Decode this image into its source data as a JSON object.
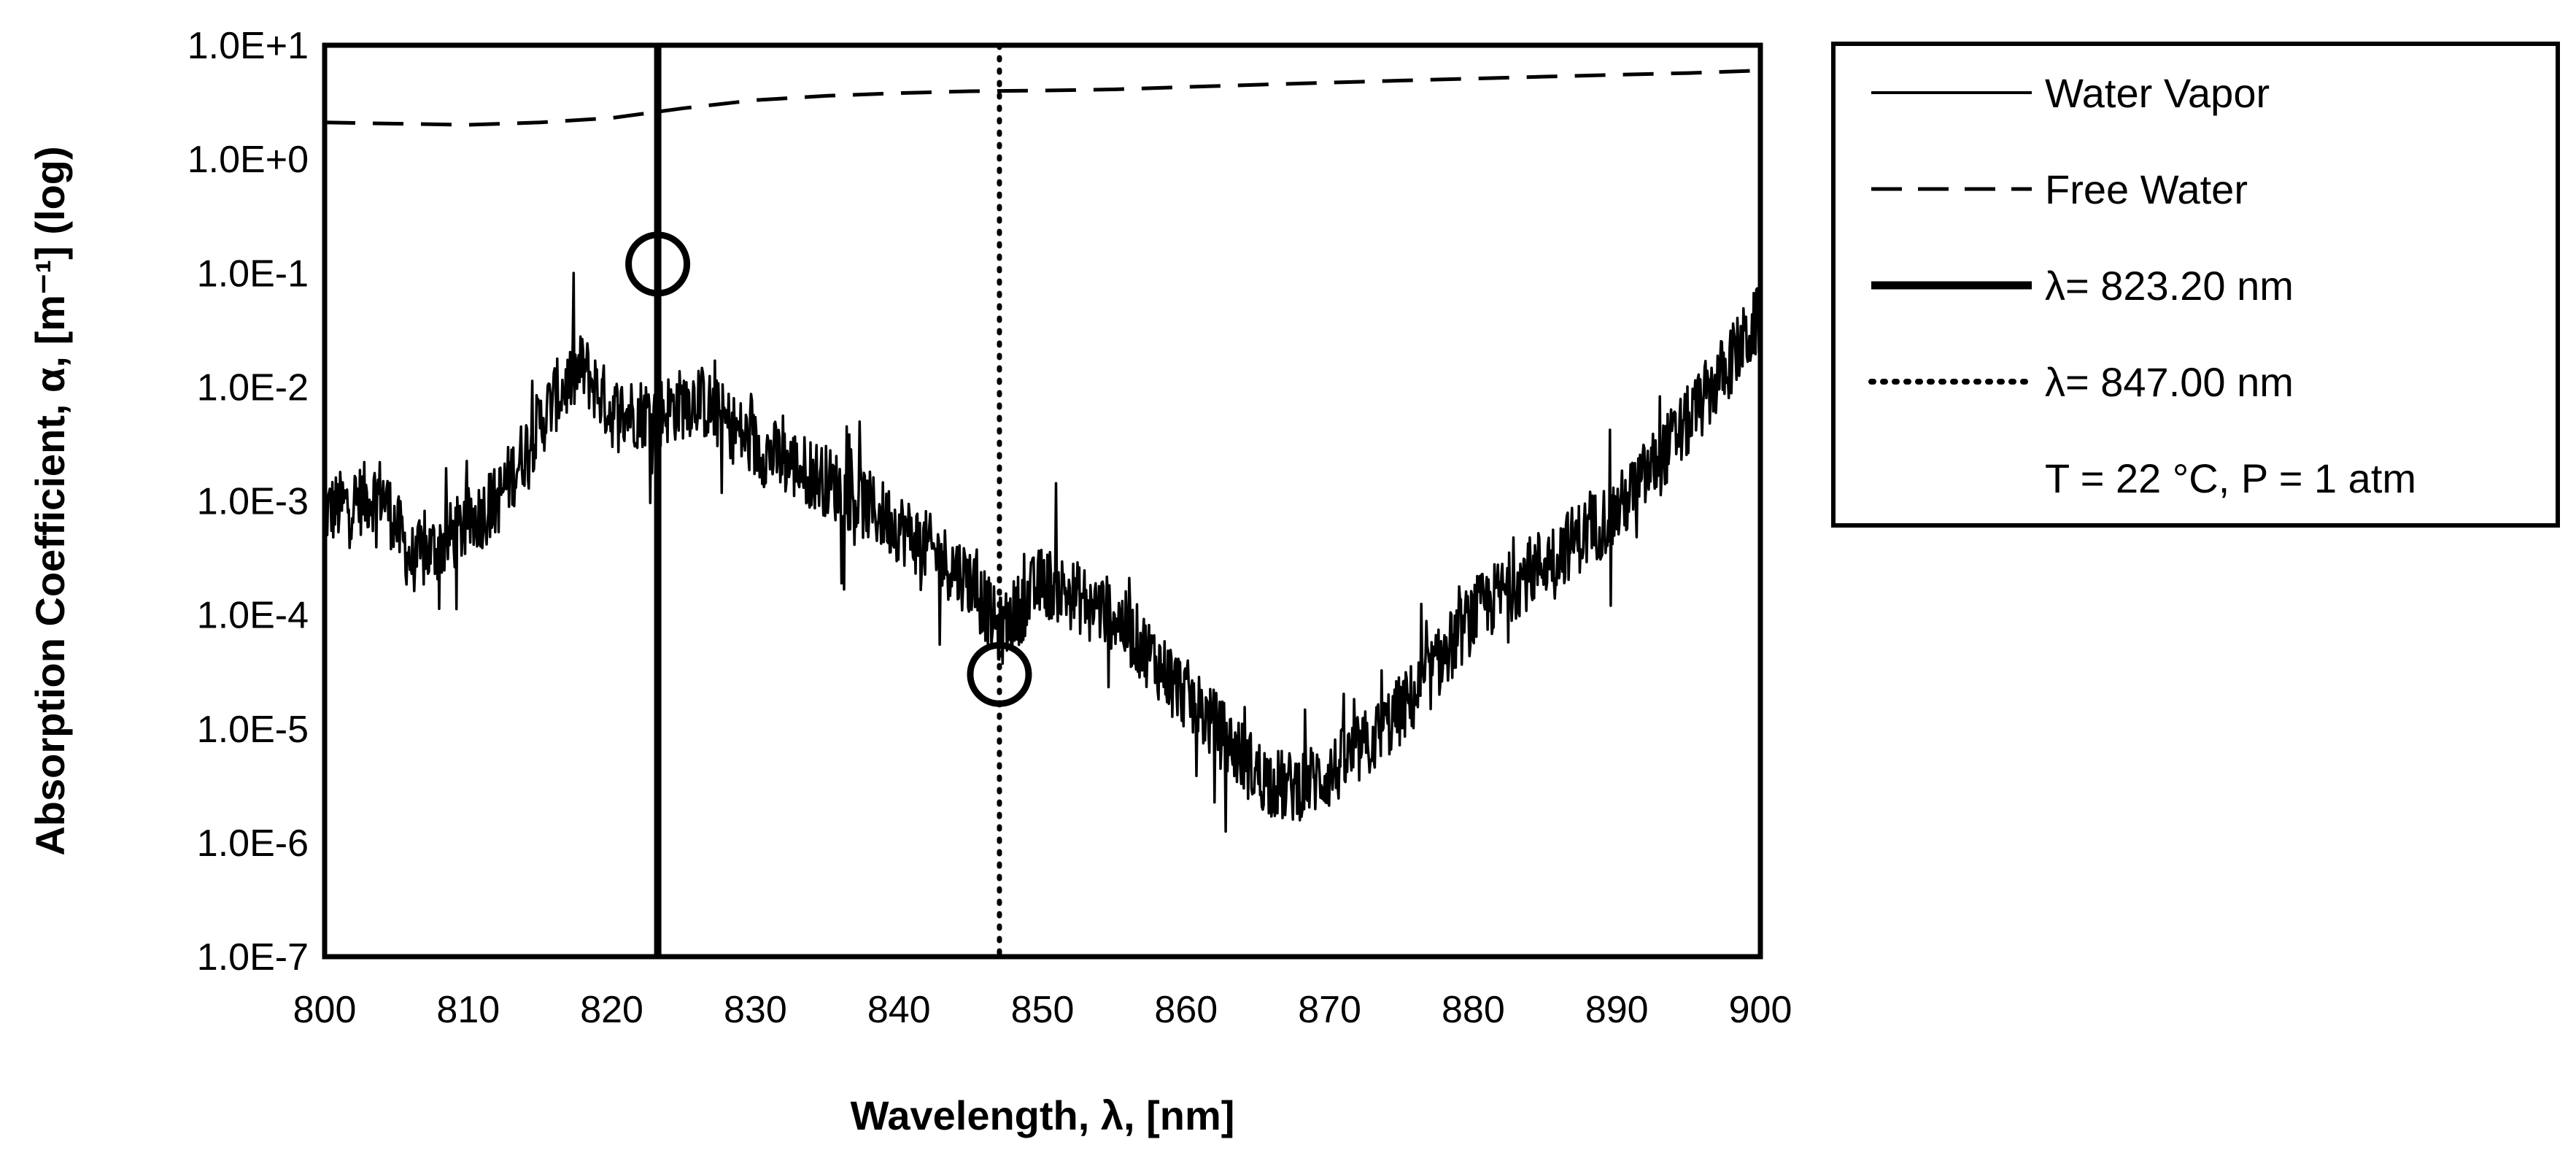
{
  "chart_data": {
    "type": "line",
    "title": "",
    "xlabel": "Wavelength, λ, [nm]",
    "ylabel": "Absorption Coefficient, α, [m⁻¹] (log)",
    "y_scale": "log",
    "xlim": [
      800,
      900
    ],
    "ylim": [
      1e-07,
      10
    ],
    "x_ticks": [
      800,
      810,
      820,
      830,
      840,
      850,
      860,
      870,
      880,
      890,
      900
    ],
    "x_tick_labels": [
      "800",
      "810",
      "820",
      "830",
      "840",
      "850",
      "860",
      "870",
      "880",
      "890",
      "900"
    ],
    "y_ticks": [
      10,
      1,
      0.1,
      0.01,
      0.001,
      0.0001,
      1e-05,
      1e-06,
      1e-07
    ],
    "y_tick_labels": [
      "1.0E+1",
      "1.0E+0",
      "1.0E-1",
      "1.0E-2",
      "1.0E-3",
      "1.0E-4",
      "1.0E-5",
      "1.0E-6",
      "1.0E-7"
    ],
    "series": [
      {
        "name": "Water Vapor",
        "style": "solid-thin",
        "trend_x": [
          800,
          804,
          806,
          808,
          812,
          816,
          818,
          820,
          823.2,
          826,
          830,
          835,
          840,
          845,
          847,
          850,
          855,
          860,
          865,
          867,
          870,
          873,
          876,
          880,
          885,
          890,
          895,
          900
        ],
        "trend_y": [
          0.0008,
          0.0012,
          0.0003,
          0.0004,
          0.001,
          0.008,
          0.015,
          0.006,
          0.006,
          0.008,
          0.003,
          0.0015,
          0.0006,
          0.0002,
          7e-05,
          0.0002,
          0.0001,
          2e-05,
          4e-06,
          3e-06,
          4e-06,
          8e-06,
          2e-05,
          0.0001,
          0.0003,
          0.0008,
          0.005,
          0.04
        ],
        "noise_decades": 0.32
      },
      {
        "name": "Free Water",
        "style": "dashed",
        "x": [
          800,
          805,
          810,
          815,
          820,
          825,
          830,
          835,
          840,
          845,
          850,
          855,
          860,
          865,
          870,
          875,
          880,
          885,
          890,
          895,
          900
        ],
        "y": [
          2.1,
          2.05,
          2.0,
          2.1,
          2.3,
          2.8,
          3.3,
          3.6,
          3.8,
          3.95,
          4.0,
          4.1,
          4.3,
          4.5,
          4.7,
          4.9,
          5.1,
          5.3,
          5.5,
          5.7,
          6.0
        ]
      }
    ],
    "markers": [
      {
        "name": "λ= 823.20 nm",
        "x": 823.2,
        "style": "solid-thick",
        "circle_y": 0.12
      },
      {
        "name": "λ= 847.00 nm",
        "x": 847.0,
        "style": "dotted",
        "circle_y": 3e-05
      }
    ],
    "legend": {
      "position": "right",
      "entries": [
        {
          "label": "Water Vapor",
          "style": "solid-thin"
        },
        {
          "label": "Free Water",
          "style": "dashed"
        },
        {
          "label": "λ= 823.20 nm",
          "style": "solid-thick"
        },
        {
          "label": "λ= 847.00 nm",
          "style": "dotted"
        }
      ],
      "note": "T = 22 °C, P = 1 atm"
    }
  }
}
